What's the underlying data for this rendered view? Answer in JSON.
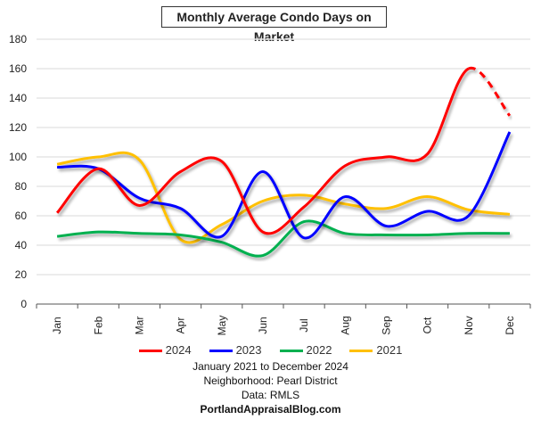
{
  "chart_data": {
    "type": "line",
    "title": "Monthly Average Condo Days on Market",
    "categories": [
      "Jan",
      "Feb",
      "Mar",
      "Apr",
      "May",
      "Jun",
      "Jul",
      "Aug",
      "Sep",
      "Oct",
      "Nov",
      "Dec"
    ],
    "yticks": [
      "0",
      "20",
      "40",
      "60",
      "80",
      "100",
      "120",
      "140",
      "160",
      "180"
    ],
    "ylim": [
      0,
      180
    ],
    "grid": true,
    "legend": "bottom",
    "series": [
      {
        "name": "2024",
        "color": "#ff0000",
        "values": [
          62,
          92,
          67,
          90,
          97,
          49,
          66,
          94,
          100,
          102,
          160,
          128
        ],
        "dashed_last_segment": true
      },
      {
        "name": "2023",
        "color": "#0000ff",
        "values": [
          93,
          92,
          72,
          65,
          46,
          90,
          45,
          73,
          53,
          63,
          60,
          117
        ]
      },
      {
        "name": "2022",
        "color": "#00b050",
        "values": [
          46,
          49,
          48,
          47,
          42,
          33,
          56,
          48,
          47,
          47,
          48,
          48
        ]
      },
      {
        "name": "2021",
        "color": "#ffc000",
        "values": [
          95,
          100,
          98,
          44,
          54,
          70,
          74,
          68,
          65,
          73,
          64,
          61
        ]
      }
    ]
  },
  "footer": {
    "line1": "January 2021 to December 2024",
    "line2": "Neighborhood: Pearl District",
    "line3": "Data: RMLS",
    "line4": "PortlandAppraisalBlog.com"
  }
}
